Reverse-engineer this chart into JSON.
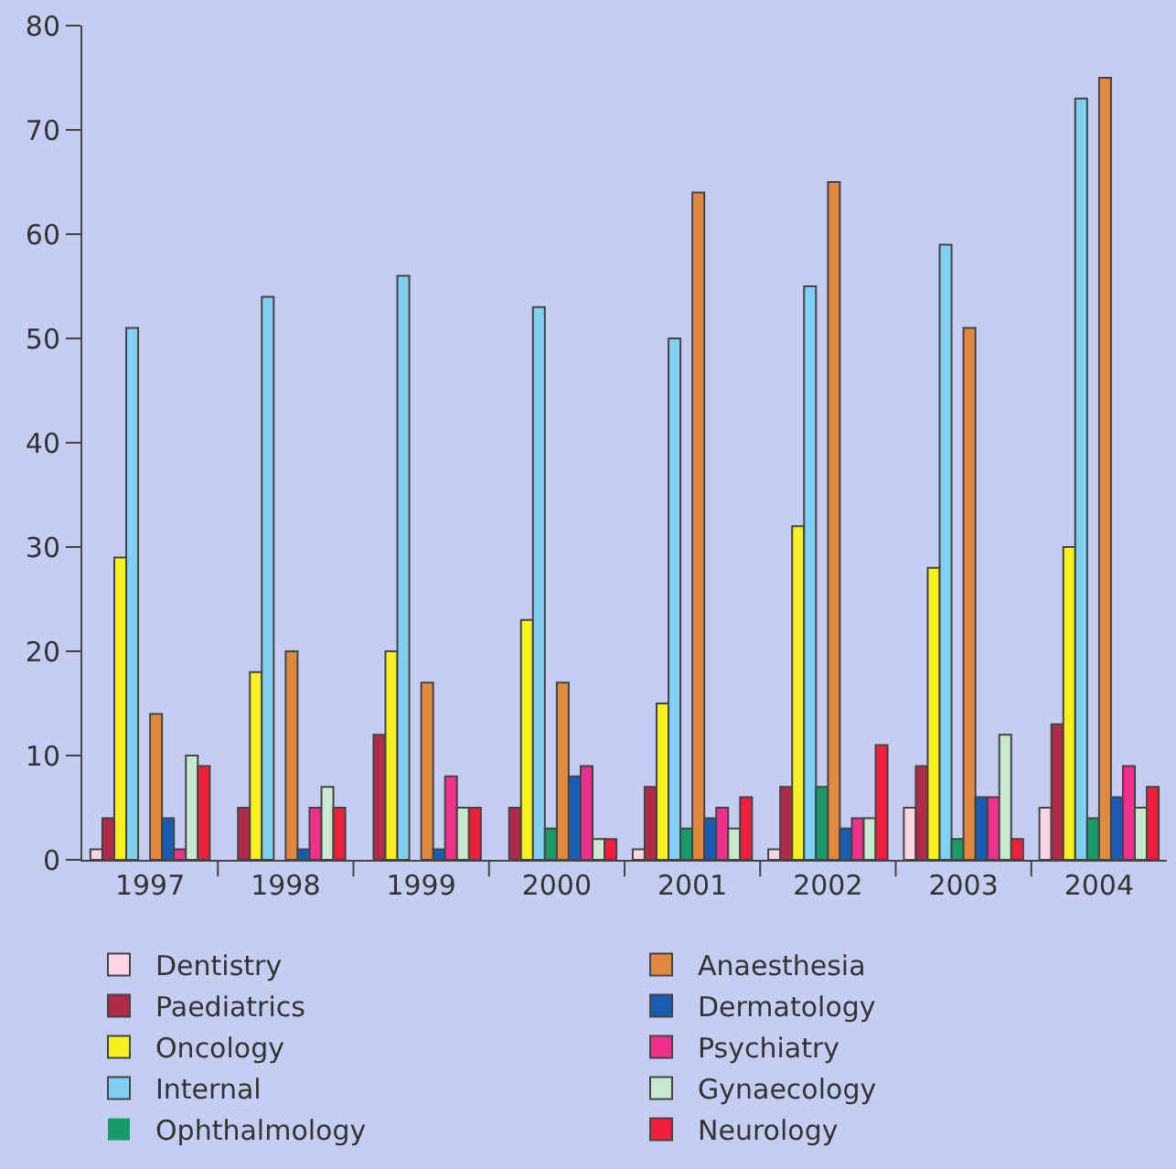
{
  "chart_data": {
    "type": "bar",
    "categories": [
      "1997",
      "1998",
      "1999",
      "2000",
      "2001",
      "2002",
      "2003",
      "2004"
    ],
    "series": [
      {
        "name": "Dentistry",
        "color": "#fcd6e2",
        "values": [
          1,
          0,
          0,
          0,
          1,
          1,
          5,
          5
        ]
      },
      {
        "name": "Paediatrics",
        "color": "#b02a4a",
        "values": [
          4,
          5,
          12,
          5,
          7,
          7,
          9,
          13
        ]
      },
      {
        "name": "Oncology",
        "color": "#f8f020",
        "values": [
          29,
          18,
          20,
          23,
          15,
          32,
          28,
          30
        ]
      },
      {
        "name": "Internal",
        "color": "#80d0f4",
        "values": [
          51,
          54,
          56,
          53,
          50,
          55,
          59,
          73
        ]
      },
      {
        "name": "Ophthalmology",
        "color": "#1a9a6a",
        "values": [
          0,
          0,
          0,
          3,
          3,
          7,
          2,
          4
        ]
      },
      {
        "name": "Anaesthesia",
        "color": "#e08a40",
        "values": [
          14,
          20,
          17,
          17,
          64,
          65,
          51,
          75
        ]
      },
      {
        "name": "Dermatology",
        "color": "#1a5cb4",
        "values": [
          4,
          1,
          1,
          8,
          4,
          3,
          6,
          6
        ]
      },
      {
        "name": "Psychiatry",
        "color": "#f0308a",
        "values": [
          1,
          5,
          8,
          9,
          5,
          4,
          6,
          9
        ]
      },
      {
        "name": "Gynaecology",
        "color": "#c8e8d0",
        "values": [
          10,
          7,
          5,
          2,
          3,
          4,
          12,
          5
        ]
      },
      {
        "name": "Neurology",
        "color": "#f0203c",
        "values": [
          9,
          5,
          5,
          2,
          6,
          11,
          2,
          7
        ]
      }
    ],
    "ylim": [
      0,
      80
    ],
    "yticks": [
      0,
      10,
      20,
      30,
      40,
      50,
      60,
      70,
      80
    ],
    "grid": false,
    "legend": "bottom"
  }
}
